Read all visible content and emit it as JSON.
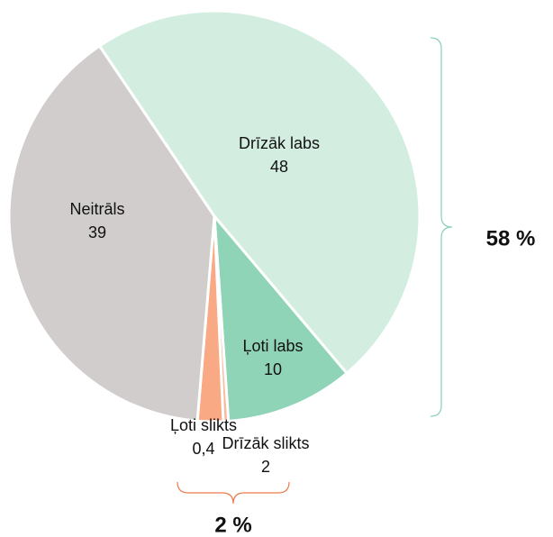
{
  "chart_data": {
    "type": "pie",
    "categories": [
      "Drīzāk labs",
      "Ļoti labs",
      "Ļoti slikts",
      "Drīzāk slikts",
      "Neitrāls"
    ],
    "values": [
      48,
      10,
      0.4,
      2,
      39
    ],
    "value_labels": [
      "48",
      "10",
      "0,4",
      "2",
      "39"
    ],
    "colors": [
      "#d3eee1",
      "#8fd4b7",
      "#fbb89a",
      "#f9a983",
      "#d1cdcd"
    ],
    "annotations": [
      {
        "text": "58 %",
        "color": "#86d2b3"
      },
      {
        "text": "2 %",
        "color": "#ec7a4c"
      }
    ]
  }
}
